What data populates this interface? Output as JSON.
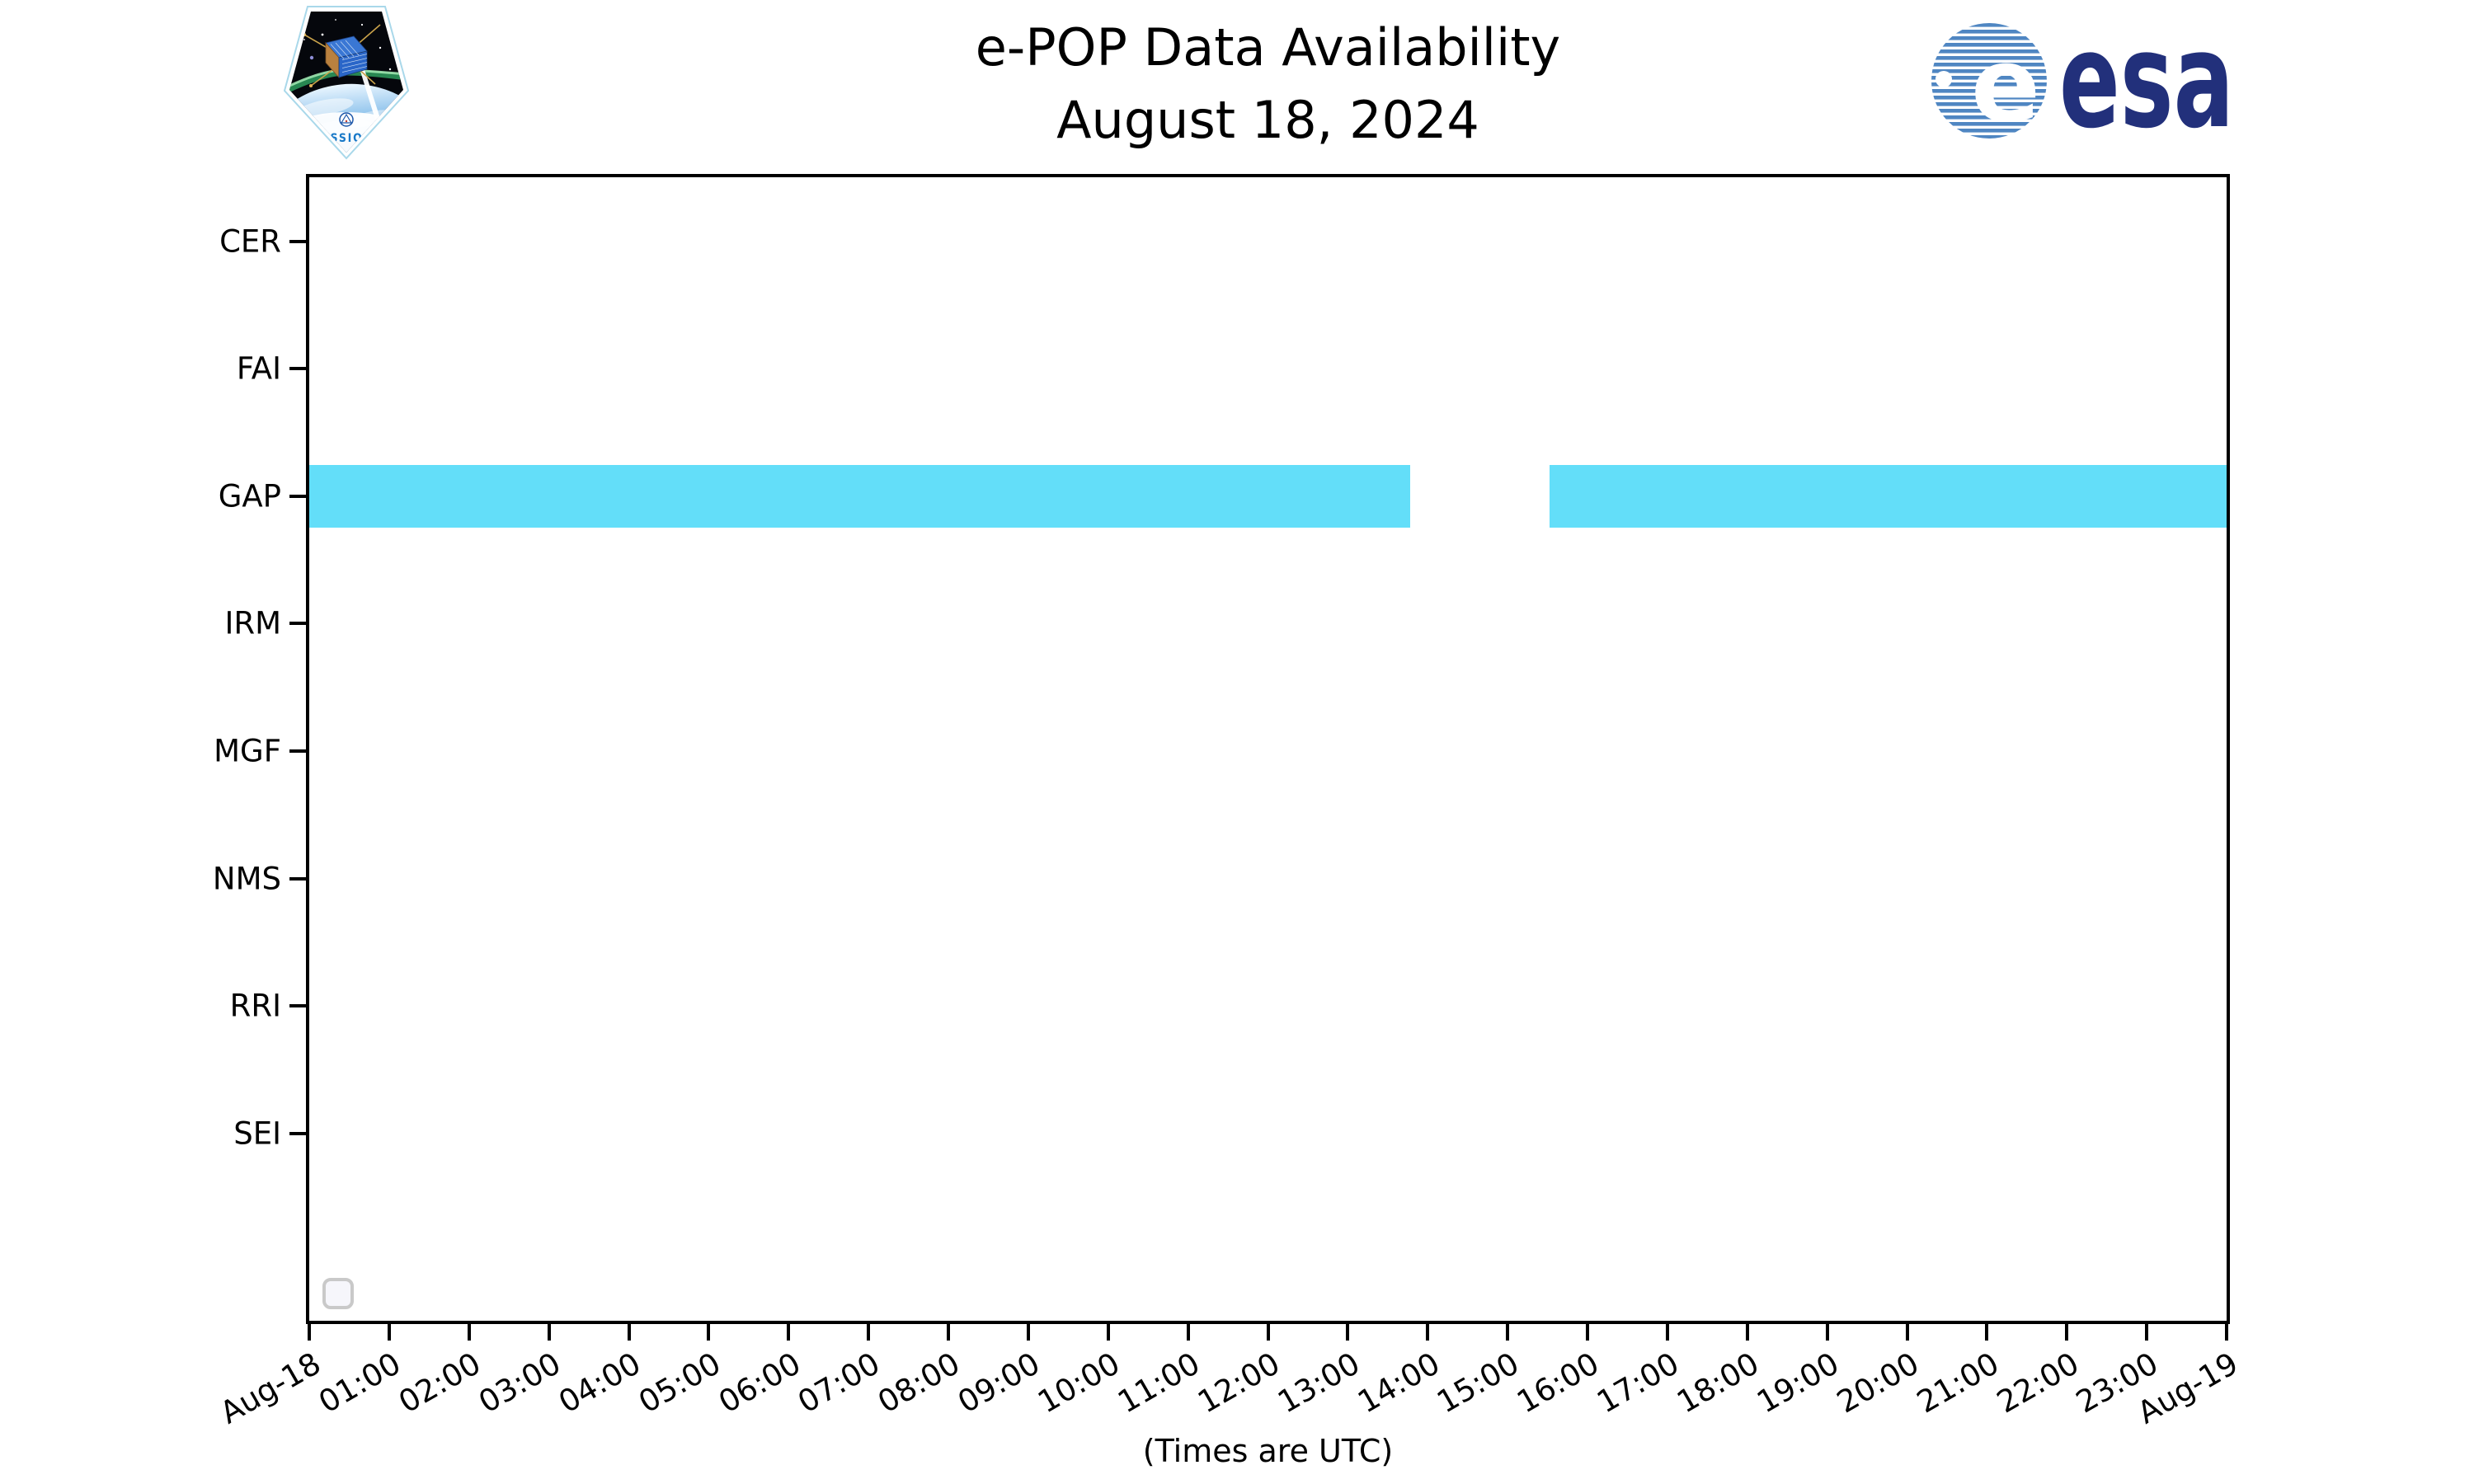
{
  "header": {
    "title_line1": "e-POP Data Availability",
    "title_line2": "August 18, 2024",
    "cassiope_patch_label": "CASSIOPE",
    "esa_wordmark": "esa"
  },
  "footer": {
    "xlabel": "(Times are UTC)"
  },
  "chart_data": {
    "type": "timeline",
    "title": "e-POP Data Availability",
    "subtitle": "August 18, 2024",
    "xlabel": "(Times are UTC)",
    "grid": false,
    "bar_color": "#63def9",
    "x_axis": {
      "start": "Aug-18 00:00 UTC",
      "end": "Aug-19 00:00 UTC",
      "span_hours": 24,
      "tick_labels": [
        "Aug-18",
        "01:00",
        "02:00",
        "03:00",
        "04:00",
        "05:00",
        "06:00",
        "07:00",
        "08:00",
        "09:00",
        "10:00",
        "11:00",
        "12:00",
        "13:00",
        "14:00",
        "15:00",
        "16:00",
        "17:00",
        "18:00",
        "19:00",
        "20:00",
        "21:00",
        "22:00",
        "23:00",
        "Aug-19"
      ]
    },
    "y_axis": {
      "instruments": [
        "CER",
        "FAI",
        "GAP",
        "IRM",
        "MGF",
        "NMS",
        "RRI",
        "SEI"
      ]
    },
    "series": [
      {
        "instrument": "CER",
        "intervals_hours": []
      },
      {
        "instrument": "FAI",
        "intervals_hours": []
      },
      {
        "instrument": "GAP",
        "intervals_hours": [
          [
            0,
            13.78
          ],
          [
            15.52,
            24
          ]
        ],
        "intervals_utc": [
          [
            "00:00",
            "13:47"
          ],
          [
            "15:31",
            "24:00"
          ]
        ]
      },
      {
        "instrument": "IRM",
        "intervals_hours": []
      },
      {
        "instrument": "MGF",
        "intervals_hours": []
      },
      {
        "instrument": "NMS",
        "intervals_hours": []
      },
      {
        "instrument": "RRI",
        "intervals_hours": []
      },
      {
        "instrument": "SEI",
        "intervals_hours": []
      }
    ],
    "legend": {
      "visible": true,
      "entries": []
    }
  }
}
